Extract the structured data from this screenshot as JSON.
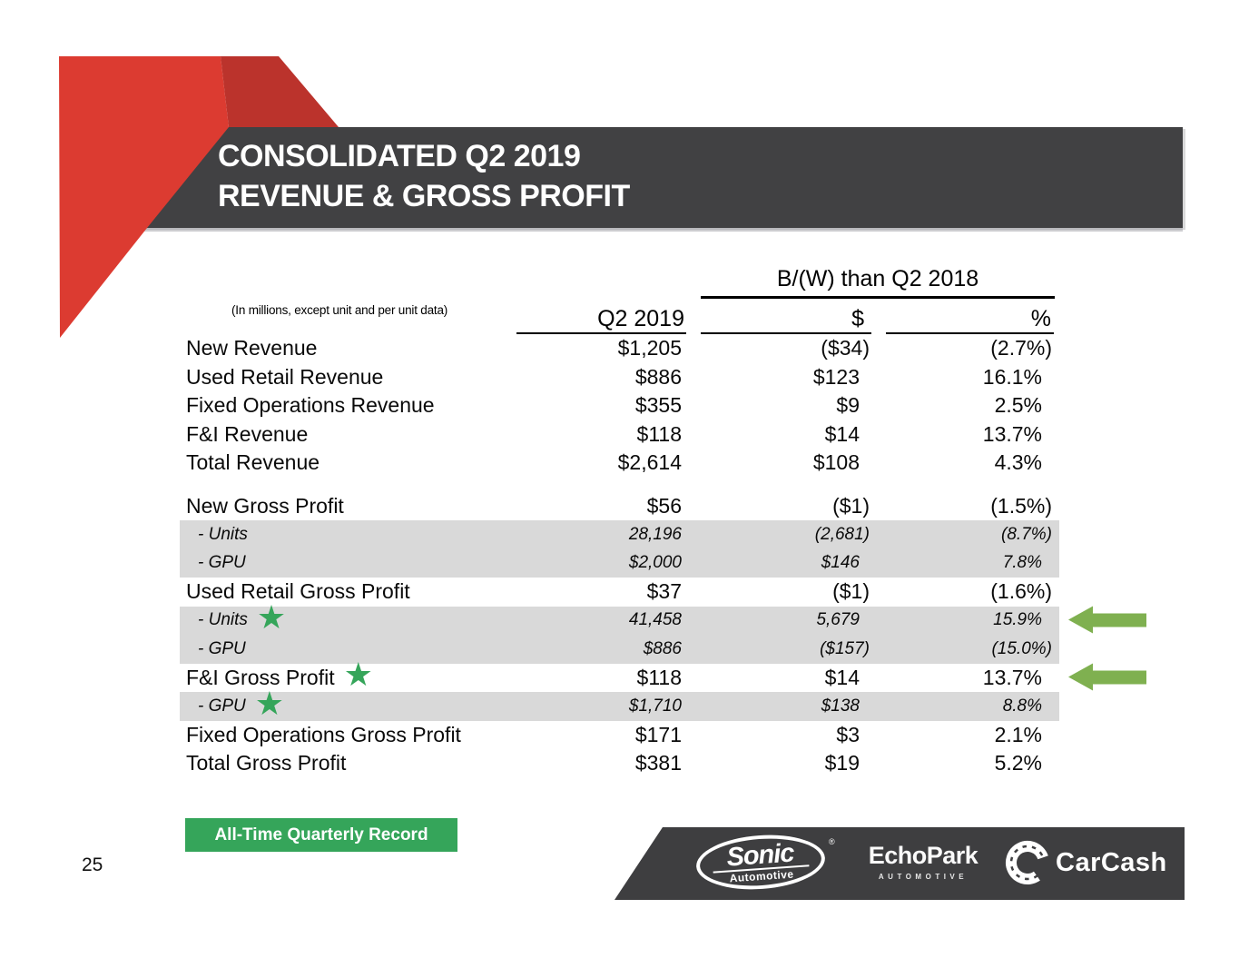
{
  "slide": {
    "title_line1": "CONSOLIDATED Q2 2019",
    "title_line2": "REVENUE & GROSS PROFIT",
    "page_number": "25",
    "record_badge": "All-Time Quarterly Record"
  },
  "table": {
    "note": "(In millions, except unit and per unit data)",
    "comparison_header": "B/(W) than Q2 2018",
    "col_q2": "Q2 2019",
    "col_dollar": "$",
    "col_percent": "%",
    "rows": [
      {
        "label": "New Revenue",
        "q2": "$1,205",
        "d": "($34)",
        "p": "(2.7%)"
      },
      {
        "label": "Used Retail Revenue",
        "q2": "$886",
        "d": "$123",
        "p": "16.1%"
      },
      {
        "label": "Fixed Operations Revenue",
        "q2": "$355",
        "d": "$9",
        "p": "2.5%"
      },
      {
        "label": "F&I Revenue",
        "q2": "$118",
        "d": "$14",
        "p": "13.7%"
      },
      {
        "label": "Total Revenue",
        "q2": "$2,614",
        "d": "$108",
        "p": "4.3%"
      },
      {
        "type": "spacer"
      },
      {
        "label": "New Gross Profit",
        "q2": "$56",
        "d": "($1)",
        "p": "(1.5%)"
      },
      {
        "label": "- Units",
        "sub": true,
        "shaded": true,
        "q2": "28,196",
        "d": "(2,681)",
        "p": "(8.7%)"
      },
      {
        "label": "- GPU",
        "sub": true,
        "shaded": true,
        "q2": "$2,000",
        "d": "$146",
        "p": "7.8%"
      },
      {
        "label": "Used Retail Gross Profit",
        "q2": "$37",
        "d": "($1)",
        "p": "(1.6%)"
      },
      {
        "label": "- Units",
        "sub": true,
        "shaded": true,
        "star": true,
        "arrow": true,
        "q2": "41,458",
        "d": "5,679",
        "p": "15.9%"
      },
      {
        "label": "- GPU",
        "sub": true,
        "shaded": true,
        "q2": "$886",
        "d": "($157)",
        "p": "(15.0%)"
      },
      {
        "label": "F&I Gross Profit",
        "star": true,
        "arrow": true,
        "q2": "$118",
        "d": "$14",
        "p": "13.7%"
      },
      {
        "label": "- GPU",
        "sub": true,
        "shaded": true,
        "star": true,
        "q2": "$1,710",
        "d": "$138",
        "p": "8.8%"
      },
      {
        "label": "Fixed Operations Gross Profit",
        "q2": "$171",
        "d": "$3",
        "p": "2.1%"
      },
      {
        "label": "Total Gross Profit",
        "q2": "$381",
        "d": "$19",
        "p": "5.2%"
      }
    ]
  },
  "footer": {
    "sonic_name": "Sonic",
    "sonic_sub": "Automotive",
    "sonic_reg": "®",
    "echopark_name": "EchoPark",
    "echopark_sub": "AUTOMOTIVE",
    "carcash_name": "CarCash"
  },
  "colors": {
    "accent-red": "#DC3B31",
    "accent-red-dark": "#BB332C",
    "banner-gray": "#414143",
    "row-shade": "#D9D9D9",
    "record-green": "#35A55A",
    "arrow-green": "#7FB050",
    "footer-gray": "#3E3E40"
  }
}
